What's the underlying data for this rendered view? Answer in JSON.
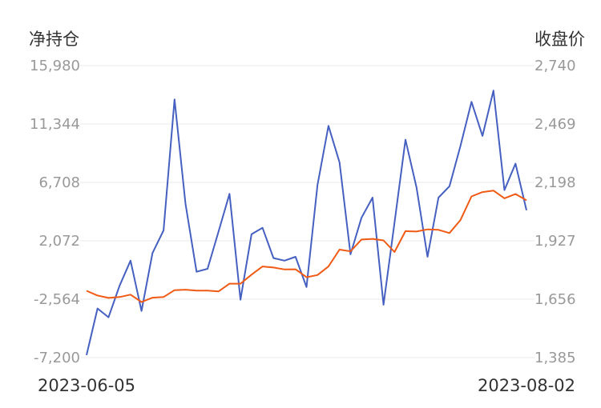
{
  "chart_data": {
    "type": "line",
    "left_axis_title": "净持仓",
    "right_axis_title": "收盘价",
    "x_start_label": "2023-06-05",
    "x_end_label": "2023-08-02",
    "left_ticks": [
      "15,980",
      "11,344",
      "6,708",
      "2,072",
      "-2,564",
      "-7,200"
    ],
    "right_ticks": [
      "2,740",
      "2,469",
      "2,198",
      "1,927",
      "1,656",
      "1,385"
    ],
    "left_ylim": [
      -7200,
      15980
    ],
    "right_ylim": [
      1385,
      2740
    ],
    "grid": true,
    "colors": {
      "net_position": "#4560c0",
      "close_price": "#f05a14"
    },
    "series": [
      {
        "axis": "left",
        "values": [
          -7000,
          -3300,
          -4000,
          -1500,
          500,
          -3500,
          1100,
          2900,
          13300,
          5000,
          -385,
          -150,
          2800,
          5800,
          -2600,
          2600,
          3100,
          700,
          500,
          800,
          -1600,
          6500,
          11200,
          8300,
          1000,
          3900,
          5500,
          -3000,
          3500,
          10100,
          6300,
          800,
          5500,
          6400,
          9600,
          13100,
          10400,
          14000,
          6100,
          8200,
          4500
        ]
      },
      {
        "axis": "right",
        "values": [
          1695,
          1673,
          1662,
          1666,
          1677,
          1643,
          1663,
          1666,
          1698,
          1700,
          1696,
          1696,
          1692,
          1728,
          1728,
          1770,
          1808,
          1803,
          1794,
          1795,
          1758,
          1768,
          1808,
          1886,
          1878,
          1933,
          1936,
          1929,
          1875,
          1972,
          1970,
          1980,
          1978,
          1963,
          2023,
          2133,
          2153,
          2160,
          2124,
          2144,
          2115
        ]
      }
    ]
  }
}
